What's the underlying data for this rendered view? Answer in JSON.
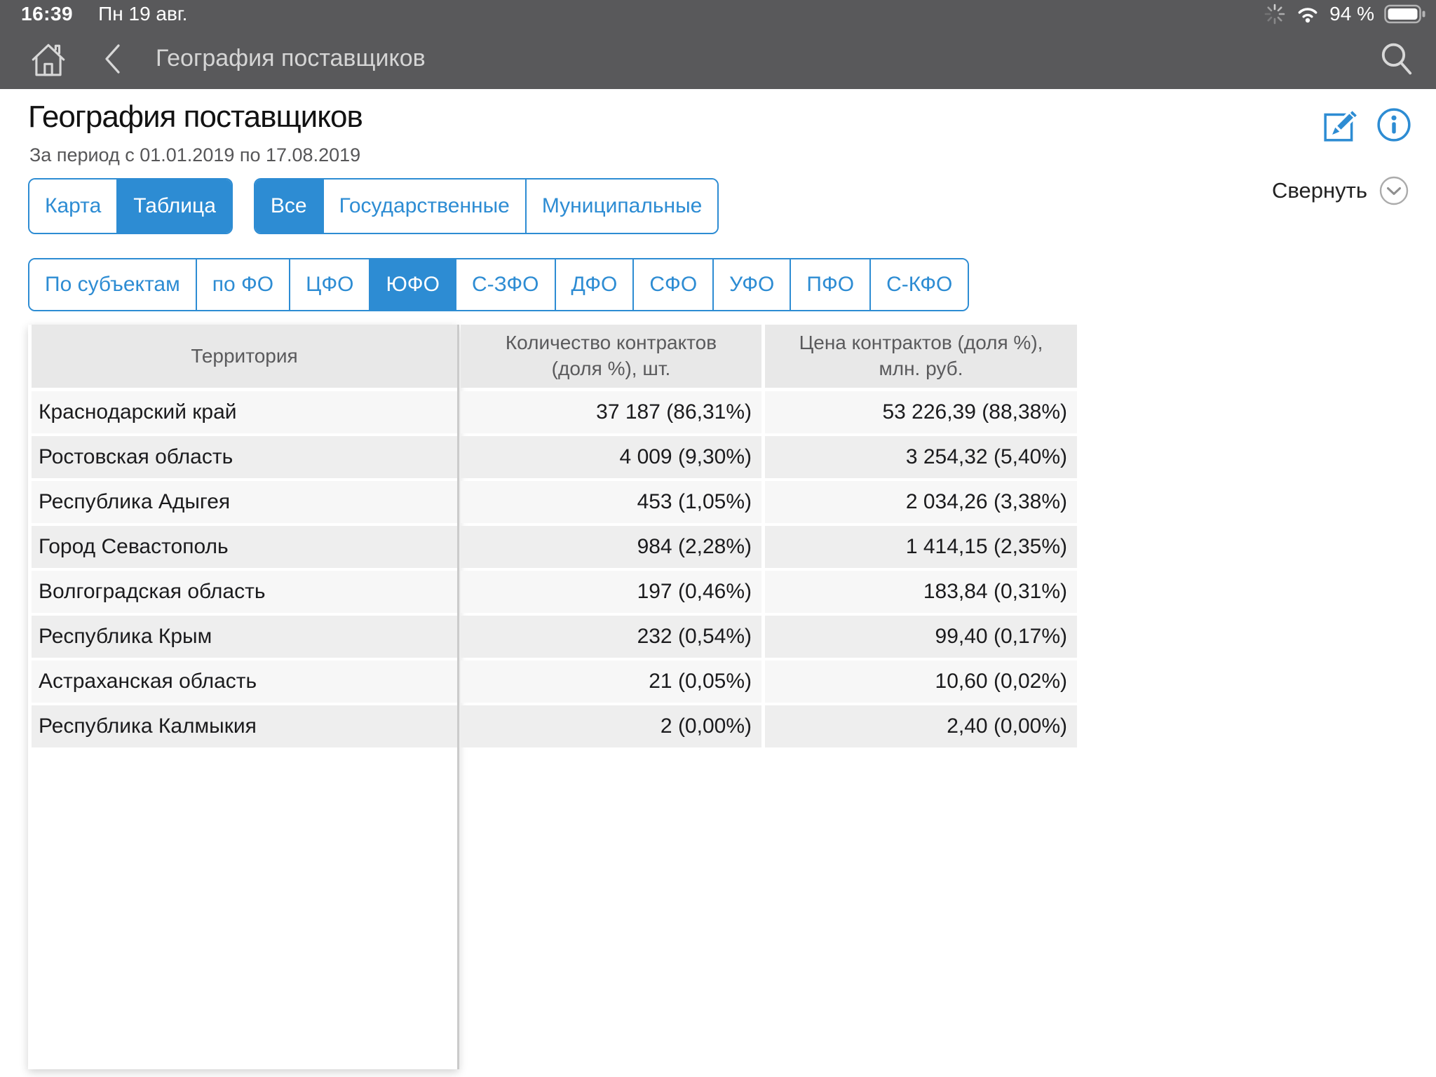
{
  "status_bar": {
    "time": "16:39",
    "date": "Пн 19 авг.",
    "battery_percent": "94 %"
  },
  "nav_bar": {
    "title": "География поставщиков"
  },
  "header": {
    "title": "География поставщиков",
    "subtitle": "За период с 01.01.2019 по 17.08.2019",
    "collapse_label": "Свернуть"
  },
  "view_toggle": {
    "options": [
      {
        "label": "Карта",
        "selected": false
      },
      {
        "label": "Таблица",
        "selected": true
      }
    ]
  },
  "ownership_filter": {
    "options": [
      {
        "label": "Все",
        "selected": true
      },
      {
        "label": "Государственные",
        "selected": false
      },
      {
        "label": "Муниципальные",
        "selected": false
      }
    ]
  },
  "district_tabs": {
    "options": [
      {
        "label": "По субъектам",
        "selected": false
      },
      {
        "label": "по ФО",
        "selected": false
      },
      {
        "label": "ЦФО",
        "selected": false
      },
      {
        "label": "ЮФО",
        "selected": true
      },
      {
        "label": "С-ЗФО",
        "selected": false
      },
      {
        "label": "ДФО",
        "selected": false
      },
      {
        "label": "СФО",
        "selected": false
      },
      {
        "label": "УФО",
        "selected": false
      },
      {
        "label": "ПФО",
        "selected": false
      },
      {
        "label": "С-КФО",
        "selected": false
      }
    ]
  },
  "table": {
    "columns": [
      "Территория",
      "Количество контрактов (доля %), шт.",
      "Цена контрактов (доля %), млн. руб."
    ],
    "rows": [
      {
        "territory": "Краснодарский край",
        "contracts": "37 187 (86,31%)",
        "price": "53 226,39 (88,38%)"
      },
      {
        "territory": "Ростовская область",
        "contracts": "4 009 (9,30%)",
        "price": "3 254,32 (5,40%)"
      },
      {
        "territory": "Республика Адыгея",
        "contracts": "453 (1,05%)",
        "price": "2 034,26 (3,38%)"
      },
      {
        "territory": "Город Севастополь",
        "contracts": "984 (2,28%)",
        "price": "1 414,15 (2,35%)"
      },
      {
        "territory": "Волгоградская область",
        "contracts": "197 (0,46%)",
        "price": "183,84 (0,31%)"
      },
      {
        "territory": "Республика Крым",
        "contracts": "232 (0,54%)",
        "price": "99,40 (0,17%)"
      },
      {
        "territory": "Астраханская область",
        "contracts": "21 (0,05%)",
        "price": "10,60 (0,02%)"
      },
      {
        "territory": "Республика Калмыкия",
        "contracts": "2 (0,00%)",
        "price": "2,40 (0,00%)"
      }
    ]
  },
  "colors": {
    "accent": "#2d8cd3",
    "top_bar": "#59595b",
    "header_cell_bg": "#e8e8e8",
    "row_odd": "#f7f7f7",
    "row_even": "#eeeeee"
  }
}
